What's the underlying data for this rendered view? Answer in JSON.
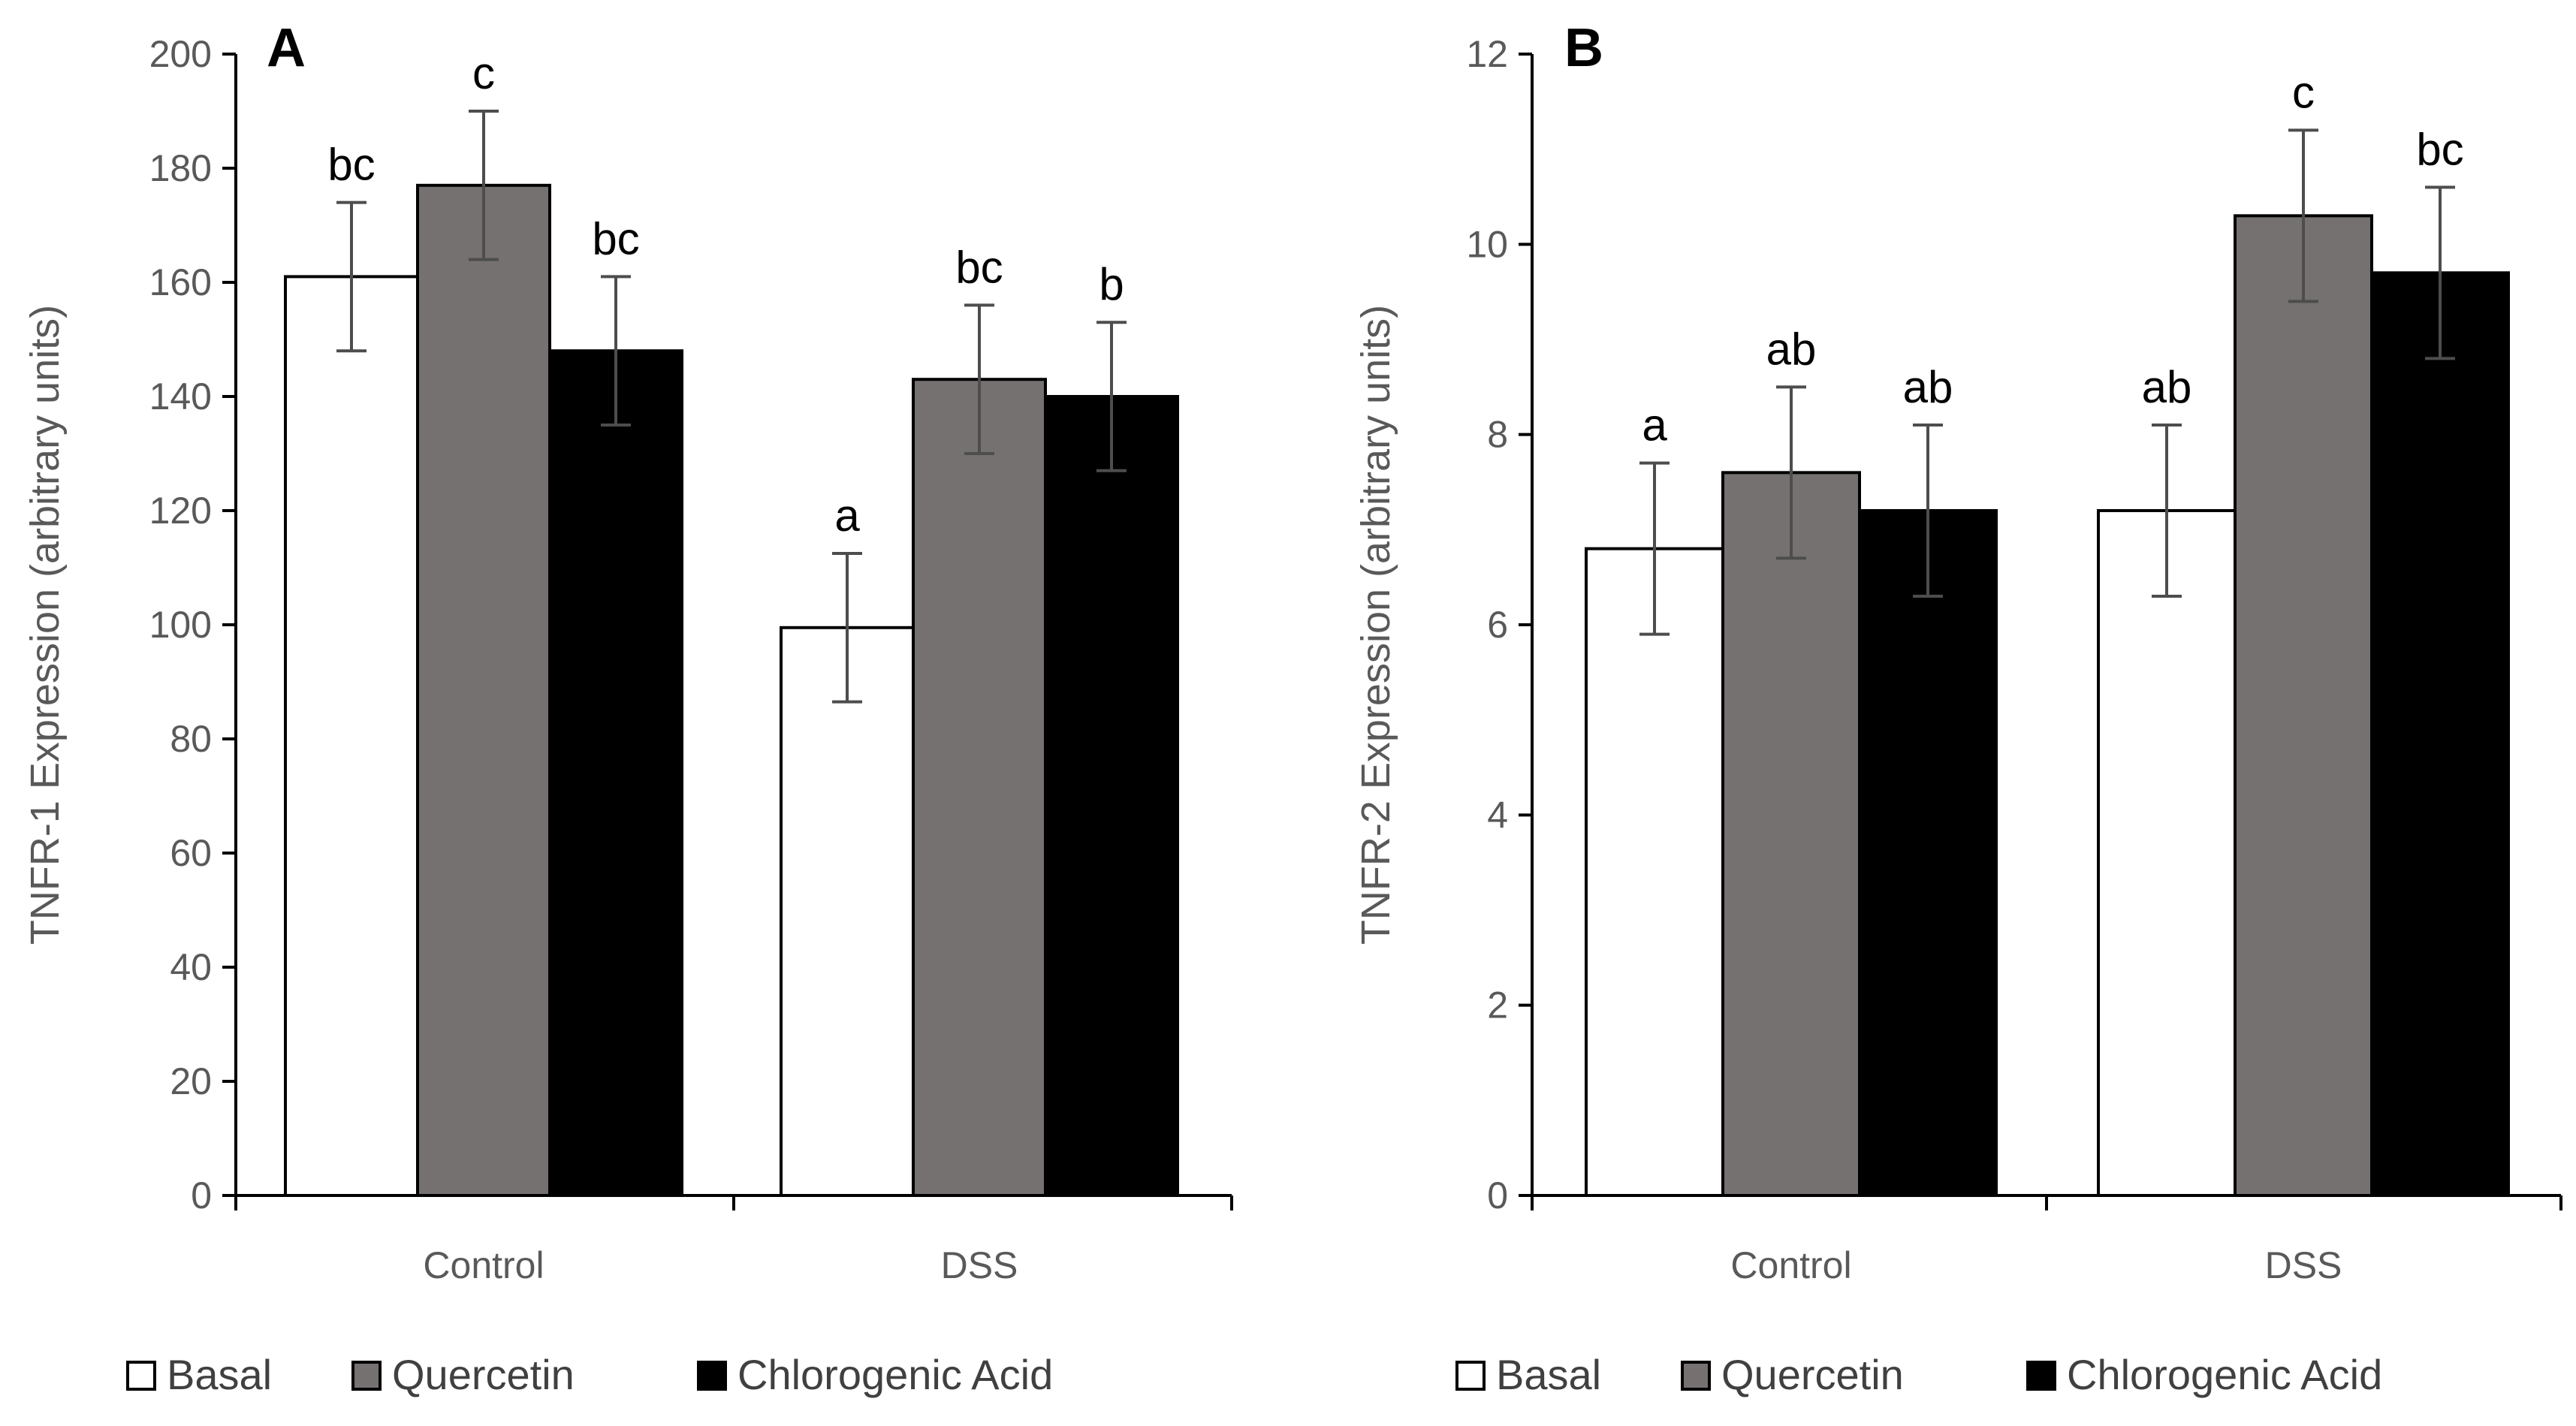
{
  "colors": {
    "basal": "#ffffff",
    "quercetin": "#767171",
    "chlorogenic": "#000000",
    "axis": "#000000",
    "text": "#595959",
    "error": "#4d4d4d"
  },
  "chart_data": [
    {
      "type": "bar",
      "panel_label": "A",
      "ylabel": "TNFR-1 Expression (arbitrary units)",
      "xlabel": "",
      "ylim": [
        0,
        200
      ],
      "yticks": [
        "0",
        "20",
        "40",
        "60",
        "80",
        "100",
        "120",
        "140",
        "160",
        "180",
        "200"
      ],
      "categories": [
        "Control",
        "DSS"
      ],
      "series": [
        {
          "name": "Basal",
          "values": [
            161,
            99.5
          ],
          "errors": [
            13,
            13
          ],
          "letters": [
            "bc",
            "a"
          ]
        },
        {
          "name": "Quercetin",
          "values": [
            177,
            143
          ],
          "errors": [
            13,
            13
          ],
          "letters": [
            "c",
            "bc"
          ]
        },
        {
          "name": "Chlorogenic Acid",
          "values": [
            148,
            140
          ],
          "errors": [
            13,
            13
          ],
          "letters": [
            "bc",
            "b"
          ]
        }
      ],
      "legend": [
        "Basal",
        "Quercetin",
        "Chlorogenic Acid"
      ],
      "legend_position": "bottom"
    },
    {
      "type": "bar",
      "panel_label": "B",
      "ylabel": "TNFR-2 Expression (arbitrary units)",
      "xlabel": "",
      "ylim": [
        0,
        12
      ],
      "yticks": [
        "0",
        "2",
        "4",
        "6",
        "8",
        "10",
        "12"
      ],
      "categories": [
        "Control",
        "DSS"
      ],
      "series": [
        {
          "name": "Basal",
          "values": [
            6.8,
            7.2
          ],
          "errors": [
            0.9,
            0.9
          ],
          "letters": [
            "a",
            "ab"
          ]
        },
        {
          "name": "Quercetin",
          "values": [
            7.6,
            10.3
          ],
          "errors": [
            0.9,
            0.9
          ],
          "letters": [
            "ab",
            "c"
          ]
        },
        {
          "name": "Chlorogenic Acid",
          "values": [
            7.2,
            9.7
          ],
          "errors": [
            0.9,
            0.9
          ],
          "letters": [
            "ab",
            "bc"
          ]
        }
      ],
      "legend": [
        "Basal",
        "Quercetin",
        "Chlorogenic Acid"
      ],
      "legend_position": "bottom"
    }
  ]
}
